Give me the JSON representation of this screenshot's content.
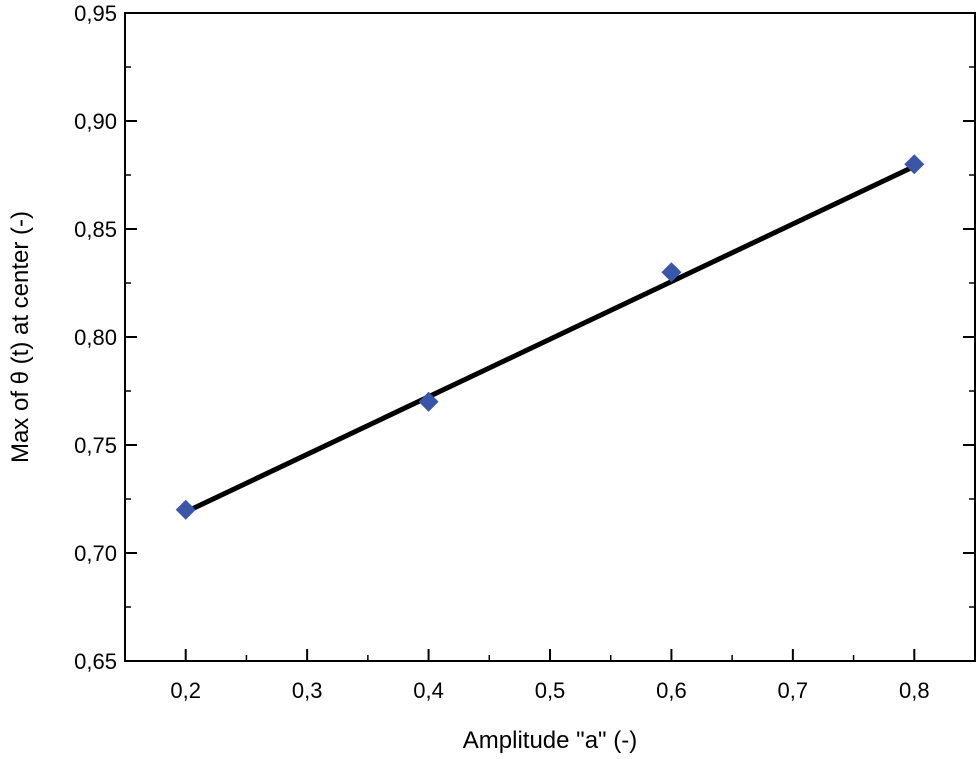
{
  "chart_data": {
    "type": "scatter",
    "xlabel": "Amplitude \"a\" (-)",
    "ylabel": "Max of θ (t)  at center (-)",
    "xlim": [
      0.15,
      0.85
    ],
    "ylim": [
      0.65,
      0.95
    ],
    "xticks": [
      0.2,
      0.3,
      0.4,
      0.5,
      0.6,
      0.7,
      0.8
    ],
    "xtick_labels": [
      "0,2",
      "0,3",
      "0,4",
      "0,5",
      "0,6",
      "0,7",
      "0,8"
    ],
    "yticks": [
      0.65,
      0.7,
      0.75,
      0.8,
      0.85,
      0.9,
      0.95
    ],
    "ytick_labels": [
      "0,65",
      "0,70",
      "0,75",
      "0,80",
      "0,85",
      "0,90",
      "0,95"
    ],
    "grid": false,
    "marker_color": "#3a56a8",
    "line_color": "#000000",
    "series": [
      {
        "marker": "diamond",
        "x": [
          0.2,
          0.4,
          0.6,
          0.8
        ],
        "y": [
          0.72,
          0.77,
          0.83,
          0.88
        ]
      }
    ],
    "fit_line": {
      "x": [
        0.2,
        0.8
      ],
      "y": [
        0.719,
        0.879
      ]
    }
  }
}
